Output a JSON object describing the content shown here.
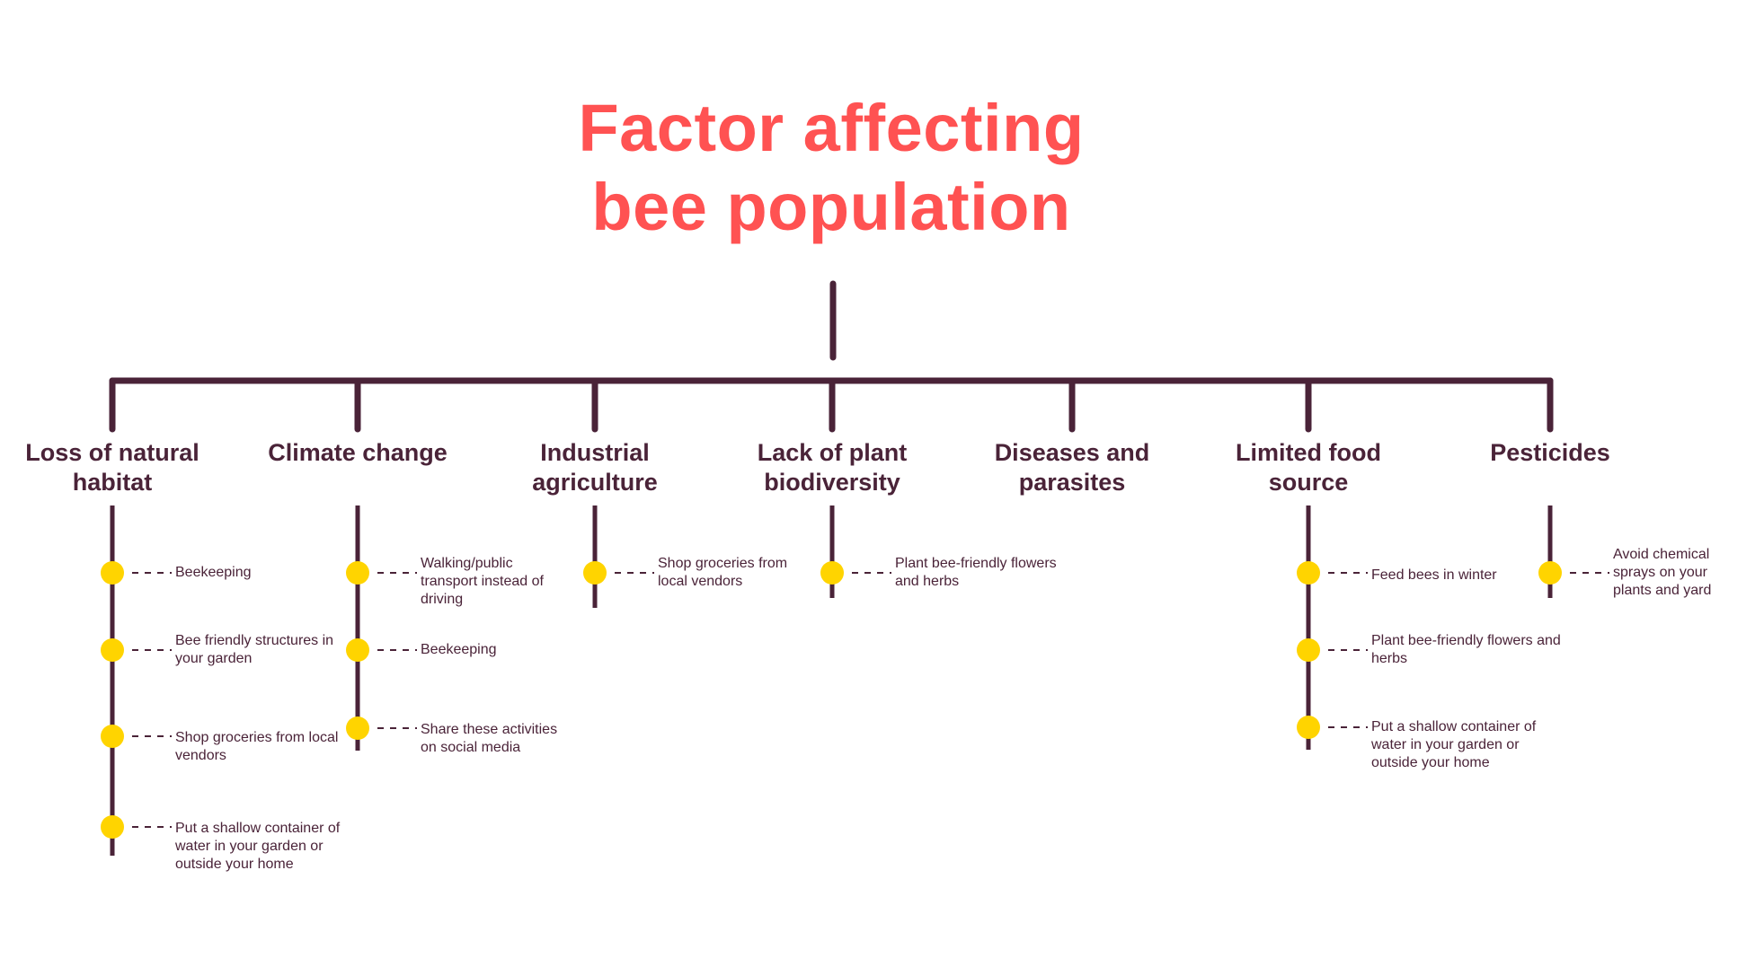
{
  "title": {
    "line1": "Factor affecting",
    "line2": "bee population"
  },
  "colors": {
    "title": "#ff5252",
    "line": "#4a2338",
    "node": "#ffd400",
    "text": "#4a2338"
  },
  "categories": [
    {
      "label": "Loss of natural habitat",
      "items": [
        "Beekeeping",
        "Bee friendly structures in your garden",
        "Shop groceries from local vendors",
        "Put a shallow container of water in your garden or outside your home"
      ]
    },
    {
      "label": "Climate change",
      "items": [
        "Walking/public transport instead of driving",
        "Beekeeping",
        "Share these activities on social media"
      ]
    },
    {
      "label": "Industrial agriculture",
      "items": [
        "Shop groceries from local vendors"
      ]
    },
    {
      "label": "Lack of plant biodiversity",
      "items": [
        "Plant bee-friendly flowers and herbs"
      ]
    },
    {
      "label": "Diseases and parasites",
      "items": []
    },
    {
      "label": "Limited food source",
      "items": [
        "Feed bees in winter",
        "Plant bee-friendly  flowers and herbs",
        "Put a shallow container of water in your garden or outside your home"
      ]
    },
    {
      "label": "Pesticides",
      "items": [
        "Avoid chemical sprays on your plants and yard"
      ]
    }
  ]
}
